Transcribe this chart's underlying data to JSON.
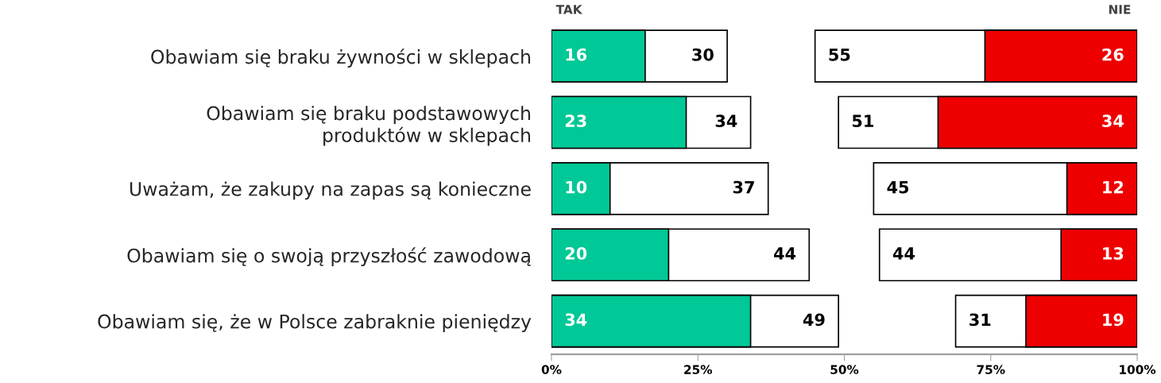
{
  "chart_data": {
    "type": "bar",
    "orientation": "horizontal",
    "categories": [
      "Obawiam się braku żywności w sklepach",
      "Obawiam się braku podstawowych\nproduktów w sklepach",
      "Uważam, że zakupy na zapas są konieczne",
      "Obawiam się o swoją przyszłość zawodową",
      "Obawiam się, że w Polsce zabraknie pieniędzy"
    ],
    "series": [
      {
        "color": "#ffffff",
        "base": [
          0,
          0,
          0,
          0,
          0
        ],
        "values": [
          30,
          34,
          37,
          44,
          49
        ],
        "value_labels": [
          "30",
          "34",
          "37",
          "44",
          "49"
        ]
      },
      {
        "color": "#00c896",
        "base": [
          0,
          0,
          0,
          0,
          0
        ],
        "values": [
          16,
          23,
          10,
          20,
          34
        ],
        "value_labels": [
          "16",
          "23",
          "10",
          "20",
          "34"
        ]
      },
      {
        "color": "#ffffff",
        "base": [
          45,
          49,
          55,
          56,
          69
        ],
        "values": [
          55,
          51,
          45,
          44,
          31
        ],
        "value_labels": [
          "55",
          "51",
          "45",
          "44",
          "31"
        ]
      },
      {
        "color": "#ee0000",
        "base": [
          74,
          66,
          88,
          87,
          81
        ],
        "values": [
          26,
          34,
          12,
          13,
          19
        ],
        "value_labels": [
          "26",
          "34",
          "12",
          "13",
          "19"
        ]
      }
    ],
    "annotations": [
      "TAK",
      "NIE"
    ],
    "xlim": [
      0,
      100
    ],
    "xticks": [
      {
        "value": 0,
        "label": "0%"
      },
      {
        "value": 25,
        "label": "25%"
      },
      {
        "value": 50,
        "label": "50%"
      },
      {
        "value": 75,
        "label": "75%"
      },
      {
        "value": 100,
        "label": "100%"
      }
    ],
    "grid": false
  }
}
